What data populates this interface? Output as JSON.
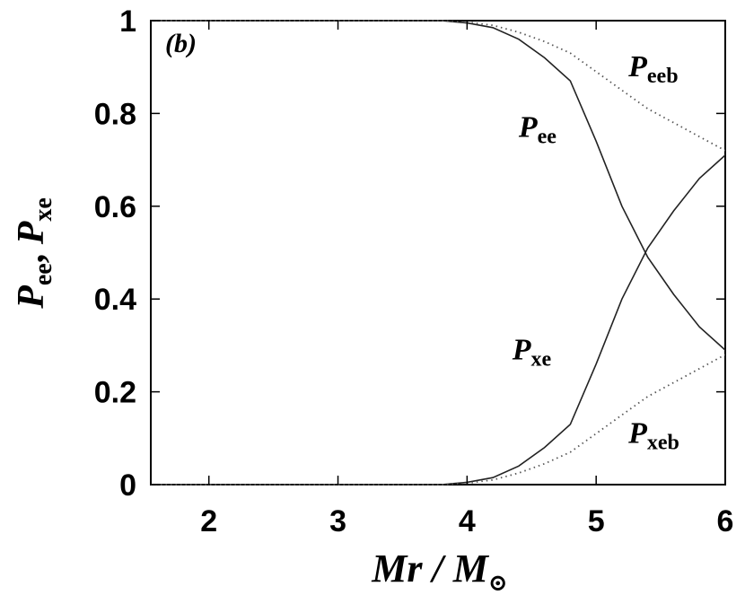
{
  "chart_data": {
    "type": "line",
    "panel_label": "(b)",
    "xlabel": {
      "main": "Mr / M",
      "sub": "⊙"
    },
    "ylabel": {
      "p1": "P",
      "s1": "ee",
      "sep": ", ",
      "p2": "P",
      "s2": "xe"
    },
    "xlim": [
      1.55,
      6.0
    ],
    "ylim": [
      0,
      1.0
    ],
    "x_ticks": [
      2,
      3,
      4,
      5,
      6
    ],
    "y_ticks": [
      0,
      0.2,
      0.4,
      0.6,
      0.8,
      1
    ],
    "x_tick_labels": [
      "2",
      "3",
      "4",
      "5",
      "6"
    ],
    "y_tick_labels": [
      "0",
      "0.2",
      "0.4",
      "0.6",
      "0.8",
      "1"
    ],
    "grid": false,
    "series": [
      {
        "key": "Pee",
        "name": "P",
        "name_sub": "ee",
        "style": "solid",
        "x": [
          1.55,
          3.8,
          4.0,
          4.2,
          4.4,
          4.6,
          4.8,
          5.0,
          5.2,
          5.4,
          5.6,
          5.8,
          6.0
        ],
        "y": [
          1.0,
          1.0,
          0.995,
          0.985,
          0.96,
          0.92,
          0.87,
          0.74,
          0.6,
          0.49,
          0.41,
          0.34,
          0.29
        ]
      },
      {
        "key": "Pxe",
        "name": "P",
        "name_sub": "xe",
        "style": "solid",
        "x": [
          1.55,
          3.8,
          4.0,
          4.2,
          4.4,
          4.6,
          4.8,
          5.0,
          5.2,
          5.4,
          5.6,
          5.8,
          6.0
        ],
        "y": [
          0.0,
          0.0,
          0.005,
          0.015,
          0.04,
          0.08,
          0.13,
          0.26,
          0.4,
          0.51,
          0.59,
          0.66,
          0.71
        ]
      },
      {
        "key": "Peeb",
        "name": "P",
        "name_sub": "eeb",
        "style": "dotted",
        "x": [
          1.55,
          3.8,
          4.0,
          4.2,
          4.4,
          4.6,
          4.8,
          5.0,
          5.2,
          5.4,
          5.6,
          5.8,
          6.0
        ],
        "y": [
          1.0,
          1.0,
          0.997,
          0.99,
          0.975,
          0.955,
          0.93,
          0.89,
          0.85,
          0.81,
          0.78,
          0.75,
          0.72
        ]
      },
      {
        "key": "Pxeb",
        "name": "P",
        "name_sub": "xeb",
        "style": "dotted",
        "x": [
          1.55,
          3.8,
          4.0,
          4.2,
          4.4,
          4.6,
          4.8,
          5.0,
          5.2,
          5.4,
          5.6,
          5.8,
          6.0
        ],
        "y": [
          0.0,
          0.0,
          0.003,
          0.01,
          0.025,
          0.045,
          0.07,
          0.11,
          0.15,
          0.19,
          0.22,
          0.25,
          0.28
        ]
      }
    ],
    "annotations": [
      {
        "series": "Peeb",
        "at": [
          5.25,
          0.88
        ]
      },
      {
        "series": "Pee",
        "at": [
          4.4,
          0.75
        ]
      },
      {
        "series": "Pxe",
        "at": [
          4.35,
          0.27
        ]
      },
      {
        "series": "Pxeb",
        "at": [
          5.25,
          0.09
        ]
      }
    ]
  }
}
